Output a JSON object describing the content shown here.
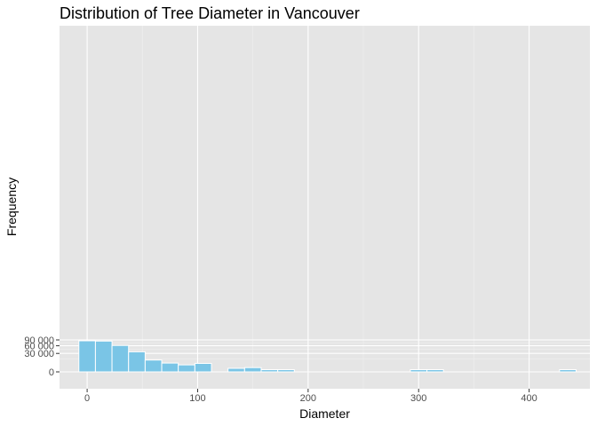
{
  "chart_data": {
    "type": "bar",
    "title": "Distribution of Tree Diameter in Vancouver",
    "xlabel": "Diameter",
    "ylabel": "Frequency",
    "y_scale": "sqrt",
    "xlim": [
      -25,
      455
    ],
    "x_ticks": [
      0,
      100,
      200,
      300,
      400
    ],
    "x_tick_labels": [
      "0",
      "100",
      "200",
      "300",
      "400"
    ],
    "y_ticks": [
      0,
      30000,
      60000,
      90000
    ],
    "y_tick_labels": [
      "0",
      "30 000",
      "60 000",
      "90 000"
    ],
    "bin_width": 15,
    "bins": [
      {
        "x": 0,
        "count": 85000
      },
      {
        "x": 15,
        "count": 83500
      },
      {
        "x": 30,
        "count": 61500
      },
      {
        "x": 45,
        "count": 35500
      },
      {
        "x": 60,
        "count": 12300
      },
      {
        "x": 75,
        "count": 6800
      },
      {
        "x": 90,
        "count": 4300
      },
      {
        "x": 105,
        "count": 6300
      },
      {
        "x": 120,
        "count": 0
      },
      {
        "x": 135,
        "count": 1100
      },
      {
        "x": 150,
        "count": 1600
      },
      {
        "x": 165,
        "count": 420
      },
      {
        "x": 180,
        "count": 420
      },
      {
        "x": 300,
        "count": 420
      },
      {
        "x": 315,
        "count": 420
      },
      {
        "x": 435,
        "count": 420
      }
    ],
    "bar_fill": "#7ac5e6",
    "bar_stroke": "#ffffff",
    "panel_background": "#e5e5e5",
    "grid_major_color": "#ffffff",
    "grid_minor_color": "#f0f0f0",
    "text_color": "#000000",
    "tick_label_color": "#4d4d4d"
  }
}
